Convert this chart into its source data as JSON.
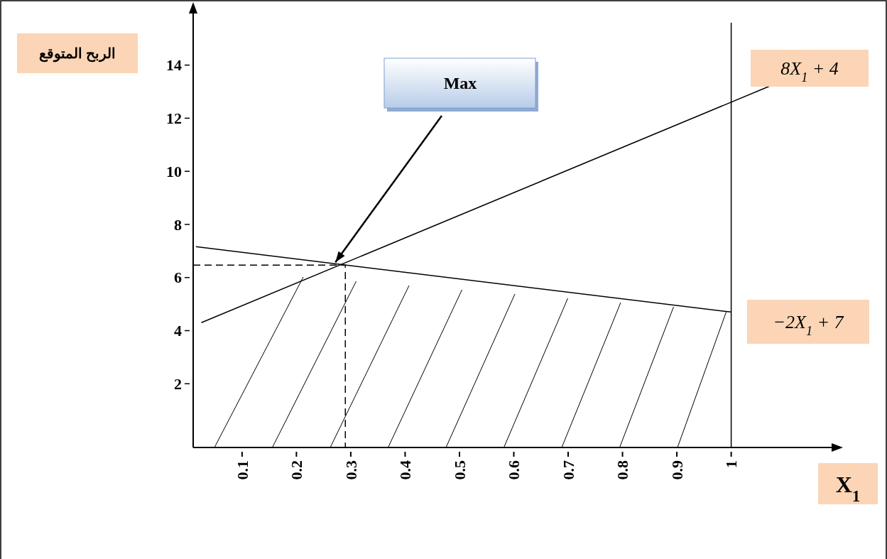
{
  "chart_data": {
    "type": "line",
    "ylabel": "الربح المتوقع",
    "xlabel": "X$_{1}$",
    "xlim": [
      0.01,
      1.19
    ],
    "ylim": [
      -0.4,
      16.05
    ],
    "xticks": [
      0.1,
      0.2,
      0.3,
      0.4,
      0.5,
      0.6,
      0.7,
      0.8,
      0.9,
      1
    ],
    "yticks": [
      2,
      4,
      6,
      8,
      10,
      12,
      14
    ],
    "series": [
      {
        "name": "8X$_{1}$ + 4",
        "color": "#000000",
        "x": [
          0.025,
          1.07
        ],
        "values": [
          4.3,
          13.2
        ]
      },
      {
        "name": "−2X$_{1}$ + 7",
        "color": "#000000",
        "x": [
          0.015,
          1
        ],
        "values": [
          7.16,
          4.7
        ]
      },
      {
        "color": "#000000",
        "line_style": "dashed",
        "x": [
          0.01,
          0.29,
          0.29
        ],
        "values": [
          6.47,
          6.47,
          -0.4
        ]
      }
    ],
    "ref_lines": [
      {
        "axis": "x",
        "value": 1,
        "color": "#000000"
      }
    ],
    "annotations": [
      "Max"
    ]
  }
}
